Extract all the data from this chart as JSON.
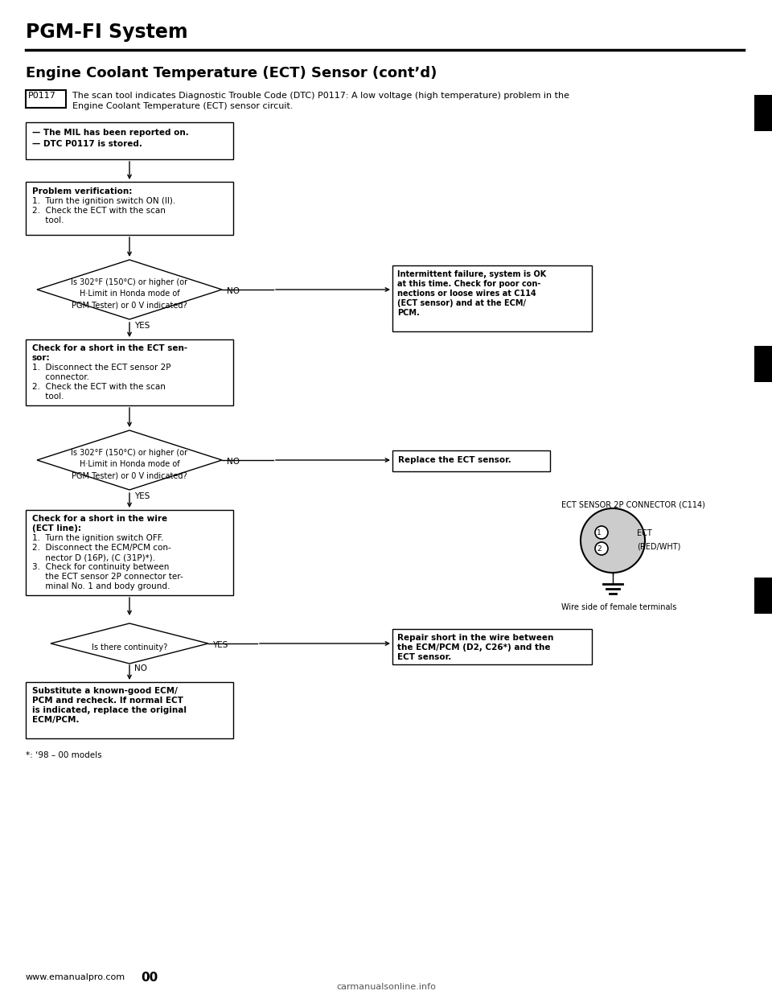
{
  "page_title": "PGM-FI System",
  "section_title": "Engine Coolant Temperature (ECT) Sensor (cont’d)",
  "dtc_code": "P0117",
  "dtc_text_line1": "The scan tool indicates Diagnostic Trouble Code (DTC) P0117: A low voltage (high temperature) problem in the",
  "dtc_text_line2": "Engine Coolant Temperature (ECT) sensor circuit.",
  "box1_lines": [
    "— The MIL has been reported on.",
    "— DTC P0117 is stored."
  ],
  "box2_title": "Problem verification:",
  "box2_lines": [
    "1.  Turn the ignition switch ON (II).",
    "2.  Check the ECT with the scan",
    "     tool."
  ],
  "diamond1_lines": [
    "Is 302°F (150°C) or higher (or",
    "H·Limit in Honda mode of",
    "PGM Tester) or 0 V indicated?"
  ],
  "diamond1_no_text": "NO",
  "diamond1_yes_text": "YES",
  "box3_title": "Check for a short in the ECT sen-",
  "box3_lines": [
    "sor:",
    "1.  Disconnect the ECT sensor 2P",
    "     connector.",
    "2.  Check the ECT with the scan",
    "     tool."
  ],
  "diamond2_lines": [
    "Is 302°F (150°C) or higher (or",
    "H·Limit in Honda mode of",
    "PGM Tester) or 0 V indicated?"
  ],
  "diamond2_no_text": "NO",
  "diamond2_yes_text": "YES",
  "box4_title": "Check for a short in the wire",
  "box4_lines": [
    "(ECT line):",
    "1.  Turn the ignition switch OFF.",
    "2.  Disconnect the ECM/PCM con-",
    "     nector D (16P), (C (31P)*).",
    "3.  Check for continuity between",
    "     the ECT sensor 2P connector ter-",
    "     minal No. 1 and body ground."
  ],
  "diamond3_lines": [
    "Is there continuity?"
  ],
  "diamond3_yes_text": "YES",
  "diamond3_no_text": "NO",
  "box5_lines": [
    "Substitute a known-good ECM/",
    "PCM and recheck. If normal ECT",
    "is indicated, replace the original",
    "ECM/PCM."
  ],
  "right_box1_lines": [
    "Intermittent failure, system is OK",
    "at this time. Check for poor con-",
    "nections or loose wires at C114",
    "(ECT sensor) and at the ECM/",
    "PCM."
  ],
  "right_box2_text": "Replace the ECT sensor.",
  "right_box3_lines": [
    "Repair short in the wire between",
    "the ECM/PCM (D2, C26*) and the",
    "ECT sensor."
  ],
  "ect_connector_title": "ECT SENSOR 2P CONNECTOR (C114)",
  "wire_label": "Wire side of female terminals",
  "footnote": "*: ‘98 – 00 models",
  "website": "www.emanualpro.com",
  "page_num": "00",
  "bg_color": "#ffffff",
  "text_color": "#000000"
}
